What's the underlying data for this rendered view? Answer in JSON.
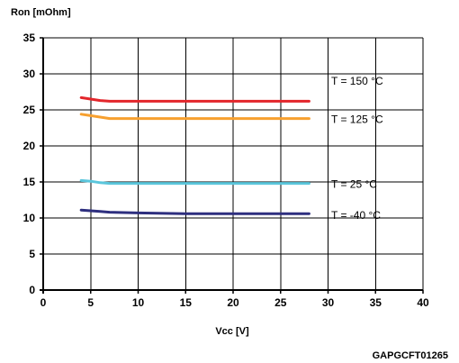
{
  "chart_data": {
    "type": "line",
    "ylabel": "Ron [mOhm]",
    "xlabel": "Vcc [V]",
    "xlim": [
      0,
      40
    ],
    "ylim": [
      0,
      35
    ],
    "xticks": [
      0,
      5,
      10,
      15,
      20,
      25,
      30,
      35,
      40
    ],
    "yticks": [
      0,
      5,
      10,
      15,
      20,
      25,
      30,
      35
    ],
    "grid": true,
    "series": [
      {
        "name": "T = 150 °C",
        "color": "#e3262b",
        "x": [
          4,
          5,
          6,
          7,
          10,
          15,
          20,
          25,
          28
        ],
        "y": [
          26.7,
          26.5,
          26.3,
          26.2,
          26.2,
          26.2,
          26.2,
          26.2,
          26.2
        ]
      },
      {
        "name": "T = 125 °C",
        "color": "#f7a02f",
        "x": [
          4,
          5,
          6,
          7,
          10,
          15,
          20,
          25,
          28
        ],
        "y": [
          24.4,
          24.2,
          24.0,
          23.8,
          23.8,
          23.8,
          23.8,
          23.8,
          23.8
        ]
      },
      {
        "name": "T = 25 °C",
        "color": "#5bc6dc",
        "x": [
          4,
          5,
          6,
          7,
          10,
          15,
          20,
          25,
          28
        ],
        "y": [
          15.2,
          15.1,
          14.9,
          14.8,
          14.8,
          14.8,
          14.8,
          14.8,
          14.8
        ]
      },
      {
        "name": "T = -40 °C",
        "color": "#2e2f7f",
        "x": [
          4,
          5,
          6,
          7,
          10,
          15,
          20,
          25,
          28
        ],
        "y": [
          11.1,
          11.0,
          10.9,
          10.8,
          10.7,
          10.6,
          10.6,
          10.6,
          10.6
        ]
      }
    ]
  },
  "figure_code": "GAPGCFT01265"
}
